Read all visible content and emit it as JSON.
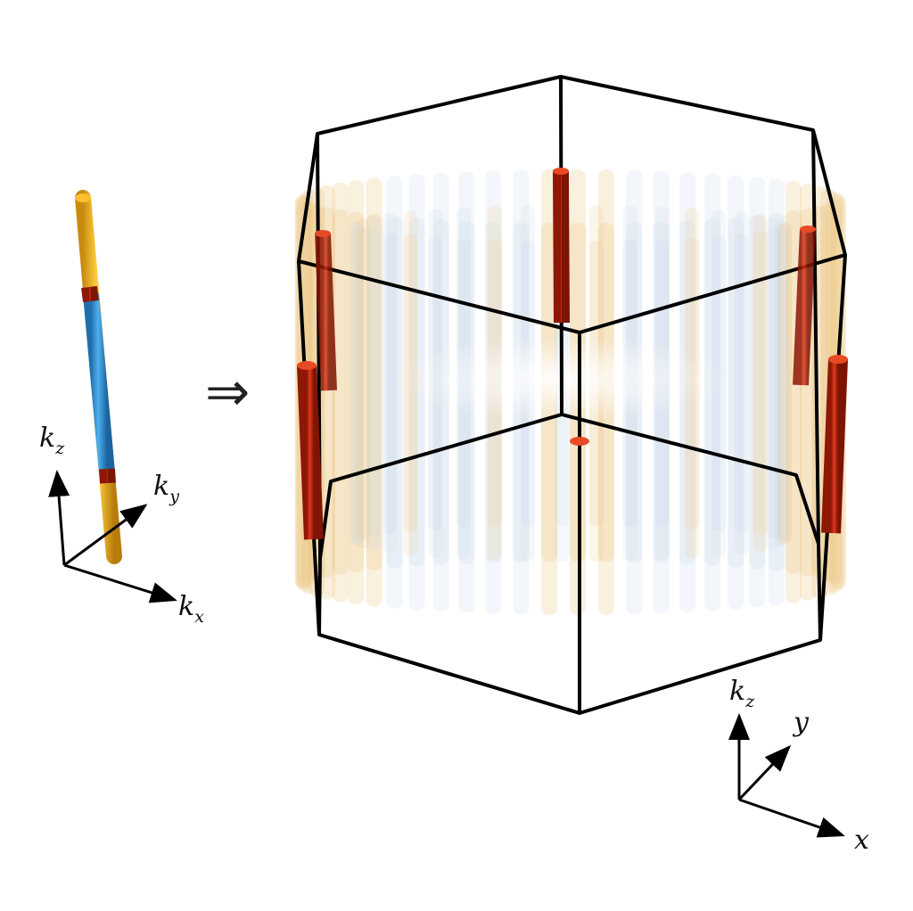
{
  "left_panel": {
    "axes": {
      "kz": {
        "base": "k",
        "sub": "z"
      },
      "ky": {
        "base": "k",
        "sub": "y"
      },
      "kx": {
        "base": "k",
        "sub": "x"
      }
    }
  },
  "transition_symbol": "⇒",
  "right_panel": {
    "axes": {
      "kz": {
        "base": "k",
        "sub": "z"
      },
      "y": "y",
      "x": "x"
    }
  },
  "colors": {
    "rod_orange": "#f0b020",
    "rod_blue": "#2f95d6",
    "rod_red": "#c8240c",
    "frame": "#000000",
    "cloud_blue": "#c7d7ea",
    "cloud_orange": "#ecc98a"
  }
}
